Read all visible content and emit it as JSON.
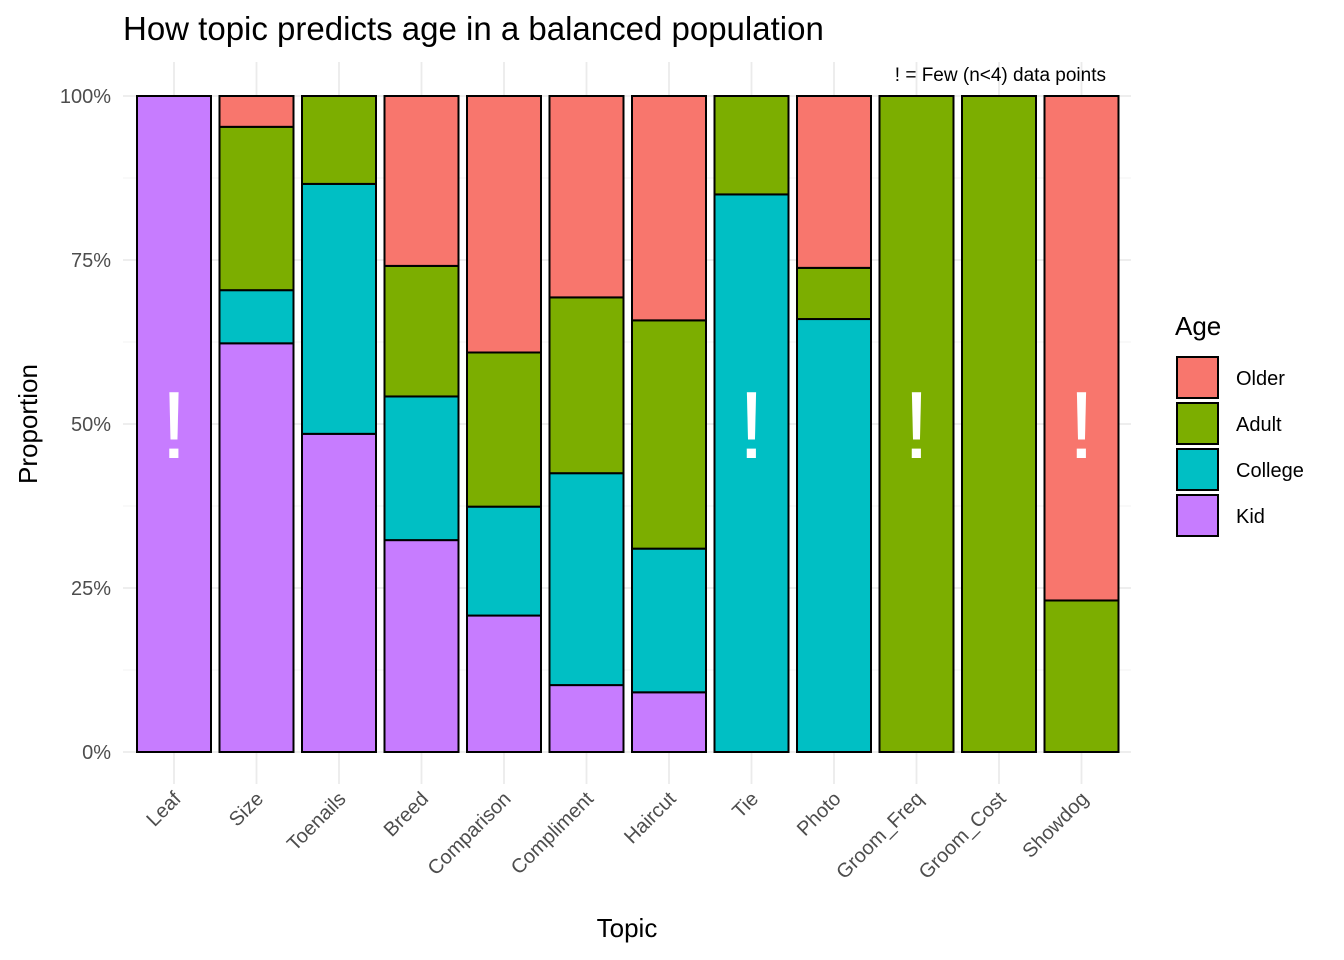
{
  "chart_data": {
    "type": "bar",
    "stacked": true,
    "title": "How topic predicts age in a balanced population",
    "note": "! = Few (n<4) data points",
    "xlabel": "Topic",
    "ylabel": "Proportion",
    "ylim": [
      0,
      1
    ],
    "yticks": [
      0,
      0.25,
      0.5,
      0.75,
      1
    ],
    "ytick_labels": [
      "0%",
      "25%",
      "50%",
      "75%",
      "100%"
    ],
    "grid": true,
    "legend": {
      "title": "Age",
      "position": "right"
    },
    "categories": [
      "Leaf",
      "Size",
      "Toenails",
      "Breed",
      "Comparison",
      "Compliment",
      "Haircut",
      "Tie",
      "Photo",
      "Groom_Freq",
      "Groom_Cost",
      "Showdog"
    ],
    "few_data_flag": "!",
    "few_data": [
      true,
      false,
      false,
      false,
      false,
      false,
      false,
      true,
      false,
      true,
      false,
      true
    ],
    "series": [
      {
        "name": "Kid",
        "color": "#C77CFF",
        "values": [
          1.0,
          0.623,
          0.485,
          0.323,
          0.208,
          0.102,
          0.091,
          0.0,
          0.0,
          0.0,
          0.0,
          0.0
        ]
      },
      {
        "name": "College",
        "color": "#00BFC4",
        "values": [
          0.0,
          0.081,
          0.381,
          0.219,
          0.166,
          0.323,
          0.219,
          0.85,
          0.66,
          0.0,
          0.0,
          0.0
        ]
      },
      {
        "name": "Adult",
        "color": "#7CAE00",
        "values": [
          0.0,
          0.249,
          0.134,
          0.199,
          0.235,
          0.268,
          0.348,
          0.15,
          0.078,
          1.0,
          1.0,
          0.231
        ]
      },
      {
        "name": "Older",
        "color": "#F8766D",
        "values": [
          0.0,
          0.047,
          0.0,
          0.259,
          0.391,
          0.307,
          0.342,
          0.0,
          0.262,
          0.0,
          0.0,
          0.769
        ]
      }
    ],
    "legend_order": [
      "Older",
      "Adult",
      "College",
      "Kid"
    ]
  }
}
